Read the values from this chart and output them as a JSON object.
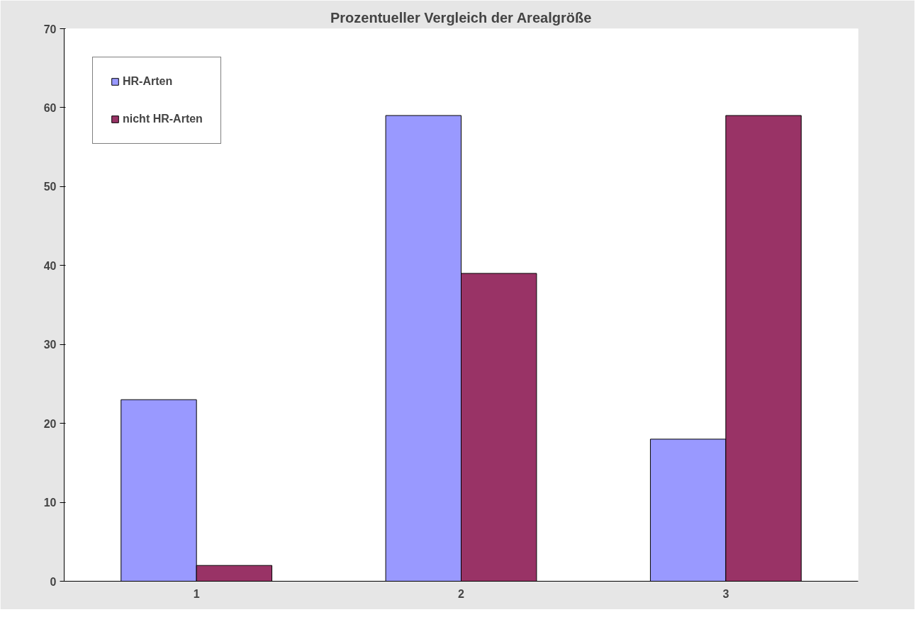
{
  "chart_data": {
    "type": "bar",
    "title": "Prozentueller Vergleich der Arealgröße",
    "categories": [
      "1",
      "2",
      "3"
    ],
    "series": [
      {
        "name": "HR-Arten",
        "color": "#9999ff",
        "values": [
          23,
          59,
          18
        ]
      },
      {
        "name": "nicht HR-Arten",
        "color": "#993366",
        "values": [
          2,
          39,
          59
        ]
      }
    ],
    "ylim": [
      0,
      70
    ],
    "yticks": [
      0,
      10,
      20,
      30,
      40,
      50,
      60,
      70
    ],
    "grid": false,
    "legend": "top left"
  }
}
